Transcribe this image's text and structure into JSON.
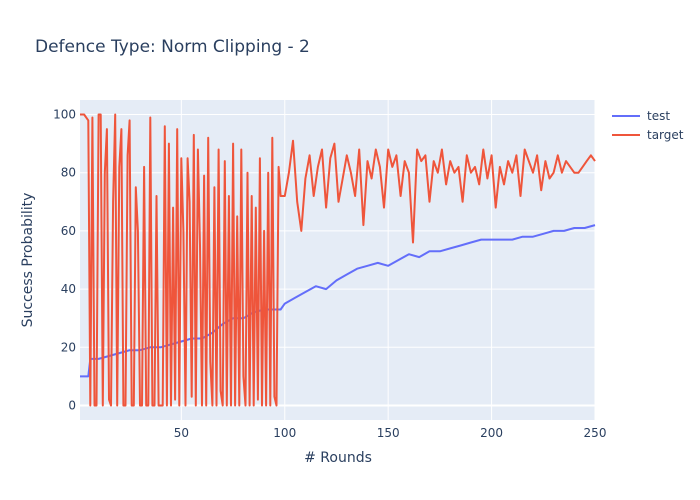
{
  "chart_data": {
    "type": "line",
    "title": "Defence Type: Norm Clipping - 2",
    "xlabel": "# Rounds",
    "ylabel": "Success Probability",
    "xlim": [
      1,
      250
    ],
    "ylim": [
      -5,
      105
    ],
    "xticks": [
      50,
      100,
      150,
      200,
      250
    ],
    "yticks": [
      0,
      20,
      40,
      60,
      80,
      100
    ],
    "grid": true,
    "legend_position": "top-right",
    "series": [
      {
        "name": "test",
        "color": "#636efa",
        "x": [
          1,
          5,
          6,
          10,
          15,
          20,
          25,
          30,
          35,
          40,
          45,
          50,
          55,
          60,
          65,
          70,
          75,
          80,
          85,
          90,
          95,
          98,
          100,
          105,
          110,
          115,
          120,
          125,
          130,
          135,
          140,
          145,
          150,
          155,
          160,
          165,
          170,
          175,
          180,
          185,
          190,
          195,
          200,
          205,
          210,
          215,
          220,
          225,
          230,
          235,
          240,
          245,
          250
        ],
        "y": [
          10,
          10,
          16,
          16,
          17,
          18,
          19,
          19,
          20,
          20,
          21,
          22,
          23,
          23,
          25,
          28,
          30,
          30,
          32,
          33,
          33,
          33,
          35,
          37,
          39,
          41,
          40,
          43,
          45,
          47,
          48,
          49,
          48,
          50,
          52,
          51,
          53,
          53,
          54,
          55,
          56,
          57,
          57,
          57,
          57,
          58,
          58,
          59,
          60,
          60,
          61,
          61,
          62
        ]
      },
      {
        "name": "target",
        "color": "#ef553b",
        "x": [
          1,
          3,
          5,
          6,
          7,
          8,
          9,
          10,
          11,
          12,
          13,
          14,
          15,
          16,
          17,
          18,
          19,
          20,
          21,
          22,
          23,
          24,
          25,
          26,
          27,
          28,
          29,
          30,
          31,
          32,
          33,
          34,
          35,
          36,
          37,
          38,
          39,
          40,
          41,
          42,
          43,
          44,
          45,
          46,
          47,
          48,
          49,
          50,
          51,
          52,
          53,
          54,
          55,
          56,
          57,
          58,
          59,
          60,
          61,
          62,
          63,
          64,
          65,
          66,
          67,
          68,
          69,
          70,
          71,
          72,
          73,
          74,
          75,
          76,
          77,
          78,
          79,
          80,
          81,
          82,
          83,
          84,
          85,
          86,
          87,
          88,
          89,
          90,
          91,
          92,
          93,
          94,
          95,
          96,
          97,
          98,
          100,
          102,
          104,
          106,
          108,
          110,
          112,
          114,
          116,
          118,
          120,
          122,
          124,
          126,
          128,
          130,
          132,
          134,
          136,
          138,
          140,
          142,
          144,
          146,
          148,
          150,
          152,
          154,
          156,
          158,
          160,
          162,
          164,
          166,
          168,
          170,
          172,
          174,
          176,
          178,
          180,
          182,
          184,
          186,
          188,
          190,
          192,
          194,
          196,
          198,
          200,
          202,
          204,
          206,
          208,
          210,
          212,
          214,
          216,
          218,
          220,
          222,
          224,
          226,
          228,
          230,
          232,
          234,
          236,
          238,
          240,
          242,
          244,
          246,
          248,
          250
        ],
        "y": [
          100,
          100,
          98,
          0,
          99,
          0,
          0,
          100,
          100,
          0,
          80,
          95,
          2,
          0,
          70,
          100,
          0,
          82,
          95,
          0,
          0,
          86,
          98,
          0,
          0,
          75,
          60,
          0,
          0,
          82,
          0,
          0,
          99,
          0,
          0,
          72,
          0,
          0,
          0,
          96,
          0,
          90,
          0,
          68,
          2,
          95,
          0,
          85,
          60,
          0,
          85,
          70,
          3,
          93,
          0,
          88,
          55,
          0,
          79,
          0,
          92,
          15,
          0,
          75,
          0,
          88,
          5,
          0,
          84,
          0,
          72,
          0,
          90,
          0,
          65,
          0,
          88,
          10,
          0,
          80,
          0,
          72,
          0,
          68,
          2,
          85,
          0,
          60,
          0,
          80,
          0,
          92,
          3,
          0,
          82,
          72,
          72,
          80,
          91,
          70,
          60,
          78,
          86,
          72,
          82,
          88,
          68,
          85,
          90,
          70,
          78,
          86,
          80,
          72,
          88,
          62,
          84,
          78,
          88,
          82,
          68,
          88,
          82,
          86,
          72,
          84,
          80,
          56,
          88,
          84,
          86,
          70,
          84,
          80,
          88,
          76,
          84,
          80,
          82,
          70,
          86,
          80,
          82,
          76,
          88,
          78,
          86,
          68,
          82,
          76,
          84,
          80,
          86,
          72,
          88,
          84,
          80,
          86,
          74,
          84,
          78,
          80,
          86,
          80,
          84,
          82,
          80,
          80,
          82,
          84,
          86,
          84
        ]
      }
    ]
  }
}
